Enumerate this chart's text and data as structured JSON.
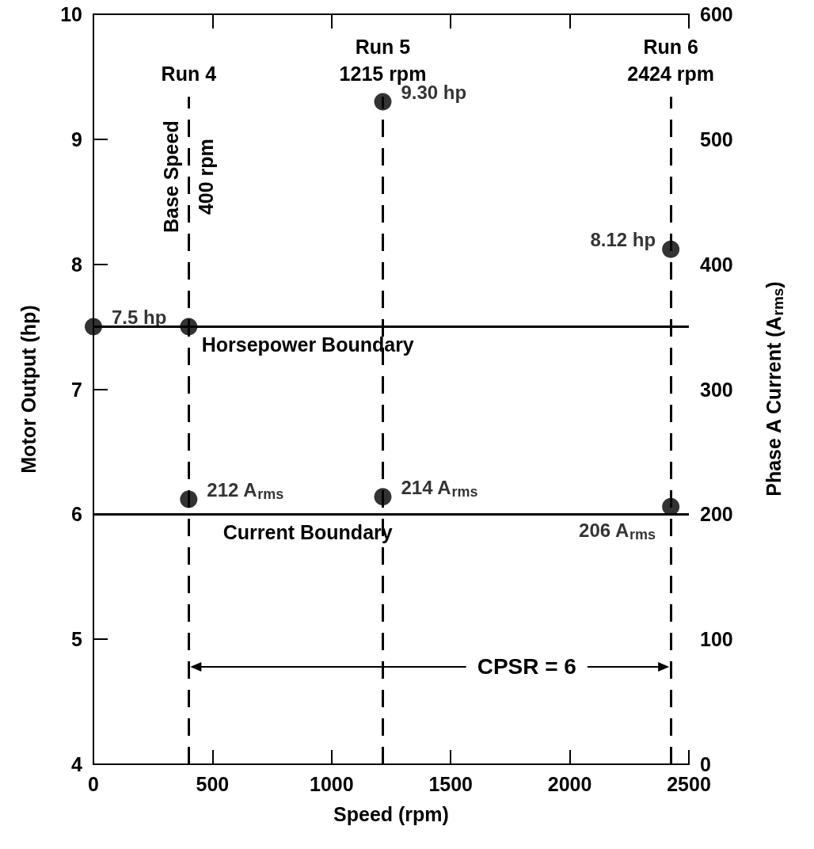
{
  "chart_data": {
    "type": "scatter",
    "xlabel": "Speed (rpm)",
    "ylabel": "Motor Output (hp)",
    "y2label": "Phase A Current (A$_{rms}$)",
    "xlim": [
      0,
      2500
    ],
    "xticks": [
      0,
      500,
      1000,
      1500,
      2000,
      2500
    ],
    "ylim": [
      4,
      10
    ],
    "yticks": [
      4,
      5,
      6,
      7,
      8,
      9,
      10
    ],
    "y2lim": [
      0,
      600
    ],
    "y2ticks": [
      0,
      100,
      200,
      300,
      400,
      500,
      600
    ],
    "series": [
      {
        "color": "#000000",
        "x": [
          0,
          400,
          1215,
          2424
        ],
        "values": [
          7.5,
          7.5,
          9.3,
          8.12
        ],
        "value_labels": [
          "7.5 hp",
          null,
          "9.30 hp",
          "8.12 hp"
        ]
      },
      {
        "color": "#000000",
        "axis": "y2",
        "x": [
          400,
          1215,
          2424
        ],
        "values": [
          212,
          214,
          206
        ],
        "value_labels": [
          "212 A$_{rms}$",
          "214 A$_{rms}$",
          "206 A$_{rms}$"
        ]
      }
    ],
    "ref_lines": [
      {
        "axis": "x",
        "value": 400,
        "label": "Run 4",
        "line_style": "dashed"
      },
      {
        "axis": "x",
        "value": 1215,
        "label": "Run 5\n1215 rpm",
        "line_style": "dashed"
      },
      {
        "axis": "x",
        "value": 2424,
        "label": "Run 6\n2424 rpm",
        "line_style": "dashed"
      },
      {
        "axis": "y",
        "value": 7.5,
        "label": "Horsepower Boundary",
        "line_style": "solid"
      },
      {
        "axis": "y",
        "value": 6,
        "label": "Current Boundary",
        "line_style": "solid"
      }
    ],
    "annotations": [
      {
        "text": "Base Speed\n400 rpm",
        "x": 400,
        "y": 8.7
      },
      "CPSR = 6"
    ],
    "marker": "circle",
    "grid": false
  }
}
